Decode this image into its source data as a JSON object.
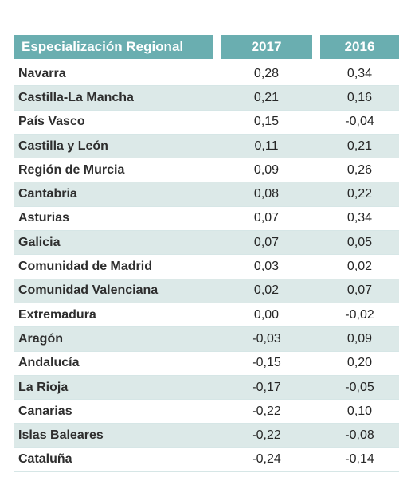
{
  "table": {
    "header": {
      "region": "Especialización Regional",
      "year1": "2017",
      "year2": "2016"
    },
    "rows": [
      {
        "region": "Navarra",
        "v2017": "0,28",
        "v2016": "0,34"
      },
      {
        "region": "Castilla-La Mancha",
        "v2017": "0,21",
        "v2016": "0,16"
      },
      {
        "region": "País Vasco",
        "v2017": "0,15",
        "v2016": "-0,04"
      },
      {
        "region": "Castilla y León",
        "v2017": "0,11",
        "v2016": "0,21"
      },
      {
        "region": "Región de Murcia",
        "v2017": "0,09",
        "v2016": "0,26"
      },
      {
        "region": "Cantabria",
        "v2017": "0,08",
        "v2016": "0,22"
      },
      {
        "region": "Asturias",
        "v2017": "0,07",
        "v2016": "0,34"
      },
      {
        "region": "Galicia",
        "v2017": "0,07",
        "v2016": "0,05"
      },
      {
        "region": "Comunidad de Madrid",
        "v2017": "0,03",
        "v2016": "0,02"
      },
      {
        "region": "Comunidad Valenciana",
        "v2017": "0,02",
        "v2016": "0,07"
      },
      {
        "region": "Extremadura",
        "v2017": "0,00",
        "v2016": "-0,02"
      },
      {
        "region": "Aragón",
        "v2017": "-0,03",
        "v2016": "0,09"
      },
      {
        "region": "Andalucía",
        "v2017": "-0,15",
        "v2016": "0,20"
      },
      {
        "region": "La Rioja",
        "v2017": "-0,17",
        "v2016": "-0,05"
      },
      {
        "region": "Canarias",
        "v2017": "-0,22",
        "v2016": "0,10"
      },
      {
        "region": "Islas Baleares",
        "v2017": "-0,22",
        "v2016": "-0,08"
      },
      {
        "region": "Cataluña",
        "v2017": "-0,24",
        "v2016": "-0,14"
      }
    ]
  },
  "colors": {
    "header_bg": "#6aaeb0",
    "shaded_row_bg": "#dce9e8"
  }
}
